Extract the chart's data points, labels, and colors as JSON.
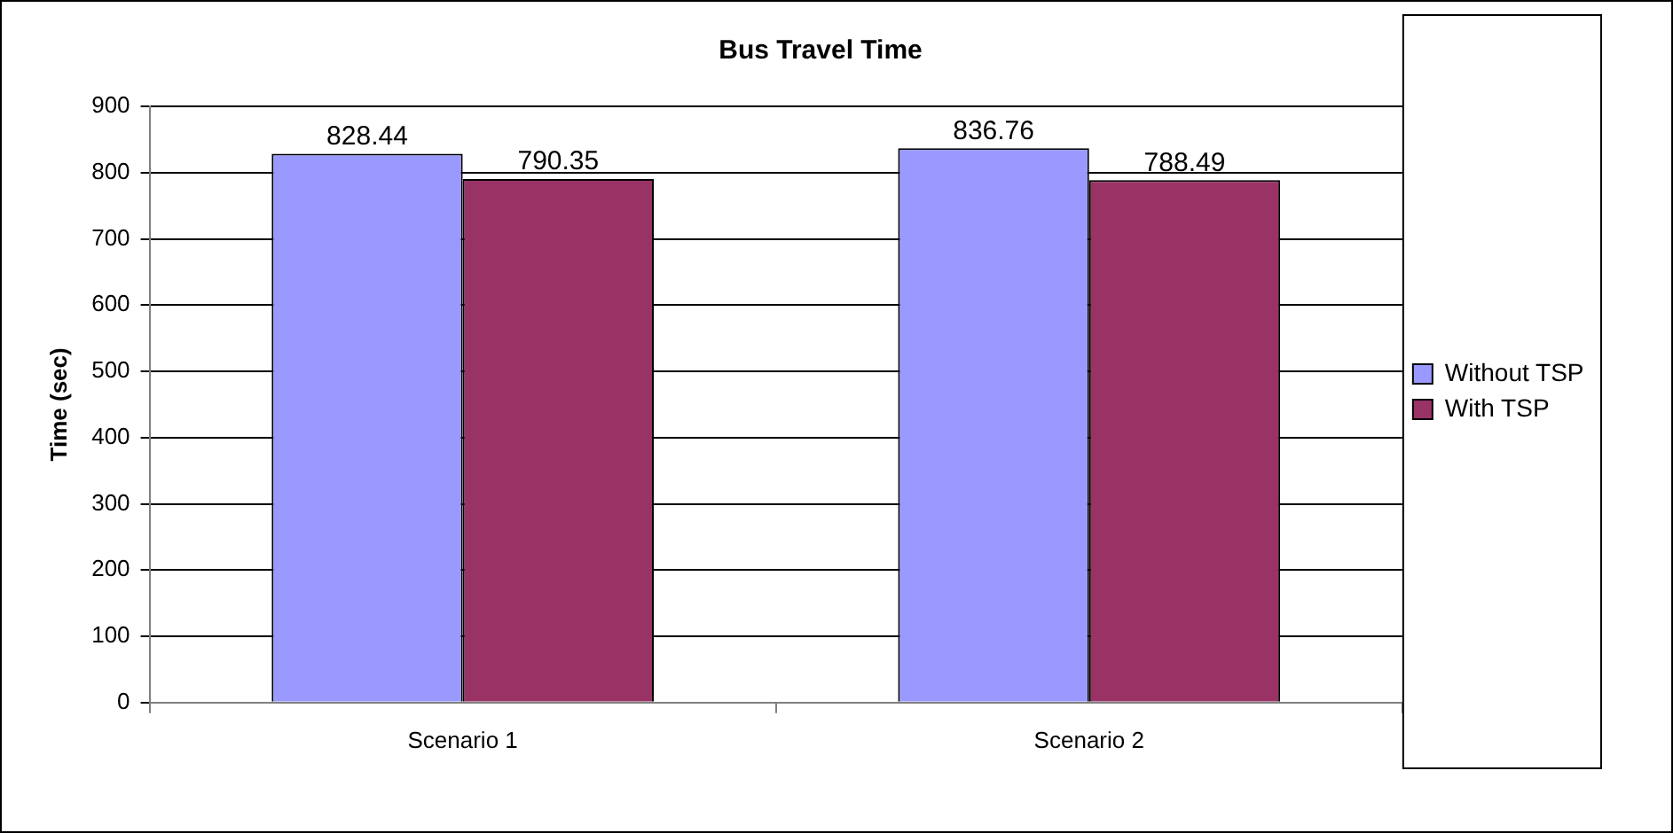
{
  "chart_data": {
    "type": "bar",
    "title": "Bus Travel Time",
    "ylabel": "Time (sec)",
    "categories": [
      "Scenario 1",
      "Scenario 2"
    ],
    "series": [
      {
        "name": "Without TSP",
        "color": "#9999ff",
        "values": [
          828.44,
          836.76
        ]
      },
      {
        "name": "With TSP",
        "color": "#993366",
        "values": [
          790.35,
          788.49
        ]
      }
    ],
    "ylim": [
      0,
      900
    ],
    "yticks": [
      0,
      100,
      200,
      300,
      400,
      500,
      600,
      700,
      800,
      900
    ],
    "grid": "y",
    "legend": "right",
    "data_labels": true
  }
}
